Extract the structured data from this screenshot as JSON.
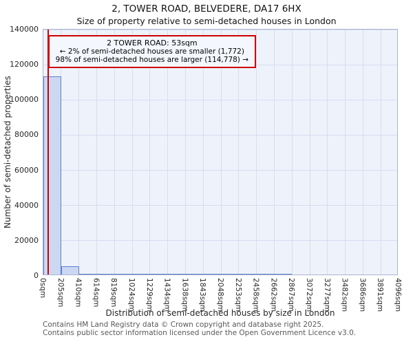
{
  "title": "2, TOWER ROAD, BELVEDERE, DA17 6HX",
  "subtitle": "Size of property relative to semi-detached houses in London",
  "annotation": {
    "line1": "2 TOWER ROAD: 53sqm",
    "line2": "← 2% of semi-detached houses are smaller (1,772)",
    "line3": "98% of semi-detached houses are larger (114,778) →"
  },
  "chart_data": {
    "type": "bar",
    "title": "2, TOWER ROAD, BELVEDERE, DA17 6HX — Size of property relative to semi-detached houses in London",
    "categories": [
      "0sqm",
      "205sqm",
      "410sqm",
      "614sqm",
      "819sqm",
      "1024sqm",
      "1229sqm",
      "1434sqm",
      "1638sqm",
      "1843sqm",
      "2048sqm",
      "2253sqm",
      "2458sqm",
      "2662sqm",
      "2867sqm",
      "3072sqm",
      "3277sqm",
      "3482sqm",
      "3686sqm",
      "3891sqm",
      "4096sqm"
    ],
    "values": [
      112600,
      4700,
      180,
      45,
      18,
      9,
      5,
      3,
      2,
      2,
      1,
      1,
      1,
      1,
      0,
      0,
      0,
      0,
      0,
      0
    ],
    "xlabel": "Distribution of semi-detached houses by size in London",
    "ylabel": "Number of semi-detached properties",
    "ylim": [
      0,
      140000
    ],
    "yticks": [
      0,
      20000,
      40000,
      60000,
      80000,
      100000,
      120000,
      140000
    ],
    "grid": true,
    "legend": "none",
    "marker": {
      "label": "2 TOWER ROAD",
      "value_sqm": 53,
      "axis_max_sqm": 4096,
      "color": "#cc0000"
    },
    "colors": {
      "bar_fill": "#ccd8f2",
      "bar_border": "#5c7fd0",
      "plot_bg": "#eef2fb",
      "grid": "#d6ddef",
      "marker": "#cc0000"
    }
  },
  "footer": {
    "line1": "Contains HM Land Registry data © Crown copyright and database right 2025.",
    "line2": "Contains public sector information licensed under the Open Government Licence v3.0."
  }
}
